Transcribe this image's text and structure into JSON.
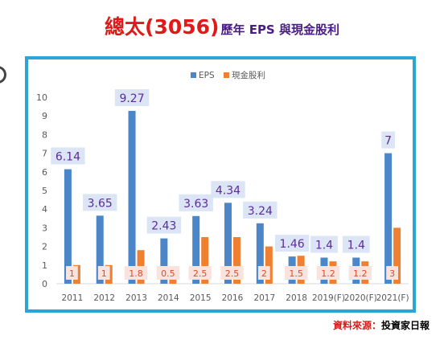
{
  "title": {
    "main": "總太(3056)",
    "sub": "歷年 EPS 與現金股利"
  },
  "source": {
    "label": "資料來源",
    "sep": "：",
    "value": "投資家日報"
  },
  "colors": {
    "eps": "#4a86c8",
    "dividend": "#ef7f31",
    "title": "#e01919",
    "subtitle": "#4b1b84",
    "frame": "#2aa6d6",
    "eps_label_text": "#5b2c9a",
    "eps_label_bg": "#dbe5f6",
    "div_label_text": "#e04a2a",
    "div_label_bg": "#fbe3dd"
  },
  "chart_data": {
    "type": "bar",
    "categories": [
      "2011",
      "2012",
      "2013",
      "2014",
      "2015",
      "2016",
      "2017",
      "2018",
      "2019(F)",
      "2020(F)",
      "2021(F)"
    ],
    "series": [
      {
        "name": "EPS",
        "values": [
          6.14,
          3.65,
          9.27,
          2.43,
          3.63,
          4.34,
          3.24,
          1.46,
          1.4,
          1.4,
          7
        ]
      },
      {
        "name": "現金股利",
        "values": [
          1,
          1,
          1.8,
          0.5,
          2.5,
          2.5,
          2,
          1.5,
          1.2,
          1.2,
          3
        ]
      }
    ],
    "ylim": [
      0,
      10
    ],
    "yticks": [
      "0",
      "1",
      "2",
      "3",
      "4",
      "5",
      "6",
      "7",
      "8",
      "9",
      "10"
    ],
    "grid": false,
    "legend": "top-center",
    "data_labels": true
  }
}
